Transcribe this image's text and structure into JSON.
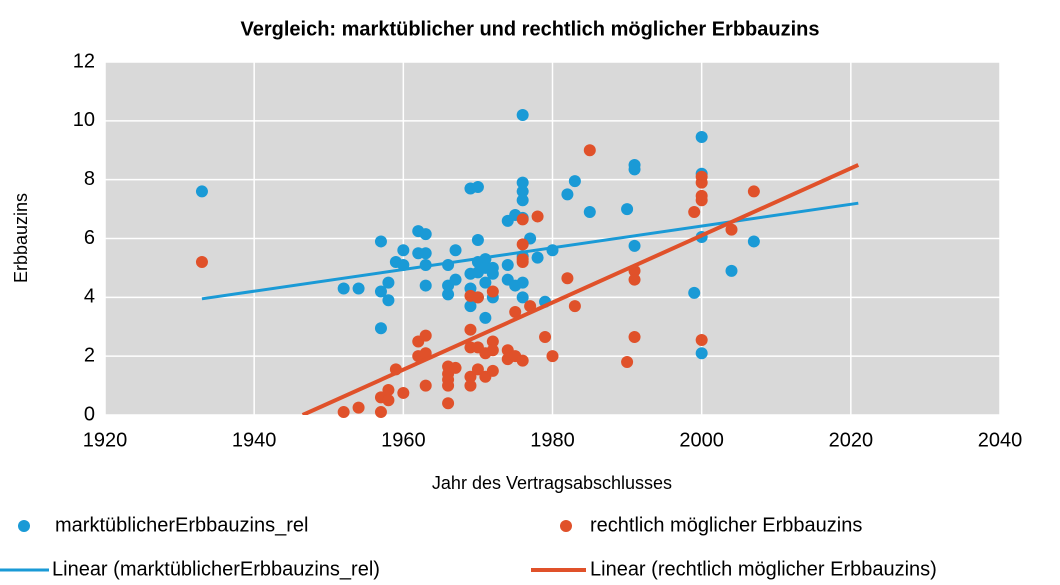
{
  "chart_data": {
    "type": "scatter",
    "title": "Vergleich: marktüblicher und rechtlich möglicher Erbbauzins",
    "xlabel": "Jahr des Vertragsabschlusses",
    "ylabel": "Erbbauzins",
    "xlim": [
      1920,
      2040
    ],
    "ylim": [
      0,
      12
    ],
    "xticks": [
      1920,
      1940,
      1960,
      1980,
      2000,
      2020,
      2040
    ],
    "yticks": [
      0,
      2,
      4,
      6,
      8,
      10,
      12
    ],
    "grid": true,
    "series": [
      {
        "name": "marktüblicherErbbauzins_rel",
        "color": "#1a9ad6",
        "x": [
          1933,
          1952,
          1954,
          1957,
          1957,
          1957,
          1958,
          1958,
          1959,
          1960,
          1960,
          1962,
          1962,
          1963,
          1963,
          1963,
          1963,
          1966,
          1966,
          1966,
          1967,
          1967,
          1969,
          1969,
          1969,
          1969,
          1970,
          1970,
          1970,
          1970,
          1970,
          1971,
          1971,
          1971,
          1971,
          1972,
          1972,
          1972,
          1974,
          1974,
          1974,
          1975,
          1975,
          1976,
          1976,
          1976,
          1976,
          1976,
          1976,
          1976,
          1976,
          1977,
          1978,
          1979,
          1980,
          1982,
          1983,
          1985,
          1990,
          1991,
          1991,
          1991,
          1999,
          2000,
          2000,
          2000,
          2000,
          2004,
          2007
        ],
        "values": [
          7.6,
          4.3,
          4.3,
          5.9,
          4.2,
          2.95,
          4.5,
          3.9,
          5.2,
          5.6,
          5.1,
          6.25,
          5.5,
          6.15,
          5.5,
          5.1,
          4.4,
          5.1,
          4.4,
          4.1,
          5.6,
          4.6,
          7.7,
          4.8,
          4.3,
          3.7,
          7.75,
          5.95,
          5.2,
          4.85,
          4.0,
          5.3,
          5.0,
          4.5,
          3.3,
          5.0,
          4.8,
          4.0,
          6.6,
          5.1,
          4.6,
          6.8,
          4.4,
          10.2,
          7.9,
          7.6,
          7.3,
          6.7,
          5.4,
          4.5,
          4.0,
          6.0,
          5.35,
          3.85,
          5.6,
          7.5,
          7.95,
          6.9,
          7.0,
          8.5,
          8.35,
          5.75,
          4.15,
          9.45,
          8.2,
          6.05,
          2.1,
          4.9,
          5.9
        ]
      },
      {
        "name": "rechtlich möglicher Erbbauzins",
        "color": "#e0512a",
        "x": [
          1933,
          1952,
          1954,
          1957,
          1957,
          1958,
          1958,
          1959,
          1960,
          1962,
          1962,
          1963,
          1963,
          1963,
          1966,
          1966,
          1966,
          1966,
          1966,
          1967,
          1969,
          1969,
          1969,
          1969,
          1969,
          1970,
          1970,
          1970,
          1971,
          1971,
          1972,
          1972,
          1972,
          1972,
          1974,
          1974,
          1975,
          1975,
          1976,
          1976,
          1976,
          1976,
          1976,
          1977,
          1978,
          1979,
          1980,
          1982,
          1983,
          1985,
          1990,
          1991,
          1991,
          1991,
          1999,
          2000,
          2000,
          2000,
          2000,
          2000,
          2004,
          2007
        ],
        "values": [
          5.2,
          0.1,
          0.25,
          0.6,
          0.1,
          0.85,
          0.5,
          1.55,
          0.75,
          2.5,
          2.0,
          2.7,
          2.1,
          1.0,
          1.65,
          1.4,
          1.2,
          1.0,
          0.4,
          1.6,
          4.05,
          2.9,
          2.3,
          1.3,
          1.0,
          4.0,
          2.3,
          1.55,
          2.1,
          1.3,
          4.2,
          2.5,
          2.2,
          1.5,
          2.2,
          1.9,
          3.5,
          2.0,
          6.65,
          5.8,
          5.3,
          5.2,
          1.85,
          3.7,
          6.75,
          2.65,
          2.0,
          4.65,
          3.7,
          9.0,
          1.8,
          4.9,
          4.6,
          2.65,
          6.9,
          8.1,
          7.9,
          7.45,
          7.3,
          2.55,
          6.3,
          7.6
        ]
      }
    ],
    "trendlines": [
      {
        "name": "Linear (marktüblicherErbbauzins_rel)",
        "color": "#1a9ad6",
        "x": [
          1933,
          2021
        ],
        "values": [
          3.95,
          7.2
        ]
      },
      {
        "name": "Linear (rechtlich möglicher Erbbauzins)",
        "color": "#e0512a",
        "x": [
          1946.5,
          2021
        ],
        "values": [
          0,
          8.5
        ]
      }
    ]
  }
}
